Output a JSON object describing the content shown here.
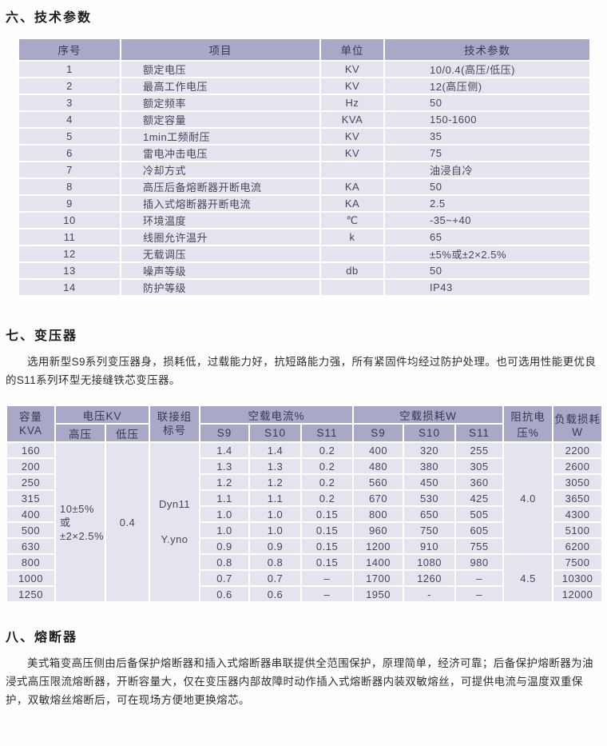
{
  "colors": {
    "header_bg": "#a9a9c7",
    "row_bg": "#e4e4ef"
  },
  "sections": {
    "s6": {
      "title": "六、技术参数"
    },
    "s7": {
      "title": "七、变压器",
      "para": "选用新型S9系列变压器身，损耗低，过载能力好，抗短路能力强，所有紧固件均经过防护处理。也可选用性能更优良的S11系列环型无接缝铁芯变压器。"
    },
    "s8": {
      "title": "八、熔断器",
      "para": "美式箱变高压侧由后备保护熔断器和插入式熔断器串联提供全范围保护，原理简单，经济可靠；后备保护熔断器为油浸式高压限流熔断器，开断容量大，仅在变压器内部故障时动作插入式熔断器内装双敏熔丝，可提供电流与温度双重保护，双敏熔丝熔断后，可在现场方便地更换熔芯。"
    }
  },
  "tech_table": {
    "headers": [
      "序号",
      "项目",
      "单位",
      "技术参数"
    ],
    "rows": [
      [
        "1",
        "额定电压",
        "KV",
        "10/0.4(高压/低压)"
      ],
      [
        "2",
        "最高工作电压",
        "KV",
        "12(高压侧)"
      ],
      [
        "3",
        "额定频率",
        "Hz",
        "50"
      ],
      [
        "4",
        "额定容量",
        "KVA",
        "150-1600"
      ],
      [
        "5",
        "1min工频耐压",
        "KV",
        "35"
      ],
      [
        "6",
        "雷电冲击电压",
        "KV",
        "75"
      ],
      [
        "7",
        "冷却方式",
        "",
        "油浸自冷"
      ],
      [
        "8",
        "高压后备熔断器开断电流",
        "KA",
        "50"
      ],
      [
        "9",
        "插入式熔断器开断电流",
        "KA",
        "2.5"
      ],
      [
        "10",
        "环境温度",
        "℃",
        "-35~+40"
      ],
      [
        "11",
        "线圈允许温升",
        "k",
        "65"
      ],
      [
        "12",
        "无载调压",
        "",
        "±5%或±2×2.5%"
      ],
      [
        "13",
        "噪声等级",
        "db",
        "50"
      ],
      [
        "14",
        "防护等级",
        "",
        "IP43"
      ]
    ]
  },
  "trans_table": {
    "headers": {
      "capacity": "容量\nKVA",
      "voltage": "电压KV",
      "hv": "高压",
      "lv": "低压",
      "conn": "联接组\n标号",
      "noload_current": "空载电流%",
      "noload_loss": "空载损耗W",
      "s9": "S9",
      "s10": "S10",
      "s11": "S11",
      "impedance": "阻抗电压%",
      "load_loss": "负载损耗W"
    },
    "rows": [
      [
        "160",
        {
          "t": "10±5%\n或\n±2×2.5%",
          "rs": 10,
          "cls": "tl"
        },
        {
          "t": "0.4",
          "rs": 10
        },
        {
          "t": "Dyn11\nY.yno",
          "rs": 10,
          "cls": "conn"
        },
        "1.4",
        "1.4",
        "0.2",
        "400",
        "320",
        "255",
        {
          "t": "4.0",
          "rs": 7
        },
        "2200"
      ],
      [
        "200",
        "1.3",
        "1.3",
        "0.2",
        "480",
        "380",
        "305",
        "2600"
      ],
      [
        "250",
        "1.2",
        "1.2",
        "0.2",
        "560",
        "450",
        "360",
        "3050"
      ],
      [
        "315",
        "1.1",
        "1.1",
        "0.2",
        "670",
        "530",
        "425",
        "3650"
      ],
      [
        "400",
        "1.0",
        "1.0",
        "0.15",
        "800",
        "650",
        "505",
        "4300"
      ],
      [
        "500",
        "1.0",
        "1.0",
        "0.15",
        "960",
        "750",
        "605",
        "5100"
      ],
      [
        "630",
        "0.9",
        "0.9",
        "0.15",
        "1200",
        "910",
        "755",
        "6200"
      ],
      [
        "800",
        "0.8",
        "0.8",
        "0.15",
        "1400",
        "1080",
        "980",
        {
          "t": "4.5",
          "rs": 3
        },
        "7500"
      ],
      [
        "1000",
        "0.7",
        "0.7",
        "–",
        "1700",
        "1260",
        "–",
        "10300"
      ],
      [
        "1250",
        "0.6",
        "0.6",
        "–",
        "1950",
        "-",
        "–",
        "12000"
      ]
    ]
  }
}
